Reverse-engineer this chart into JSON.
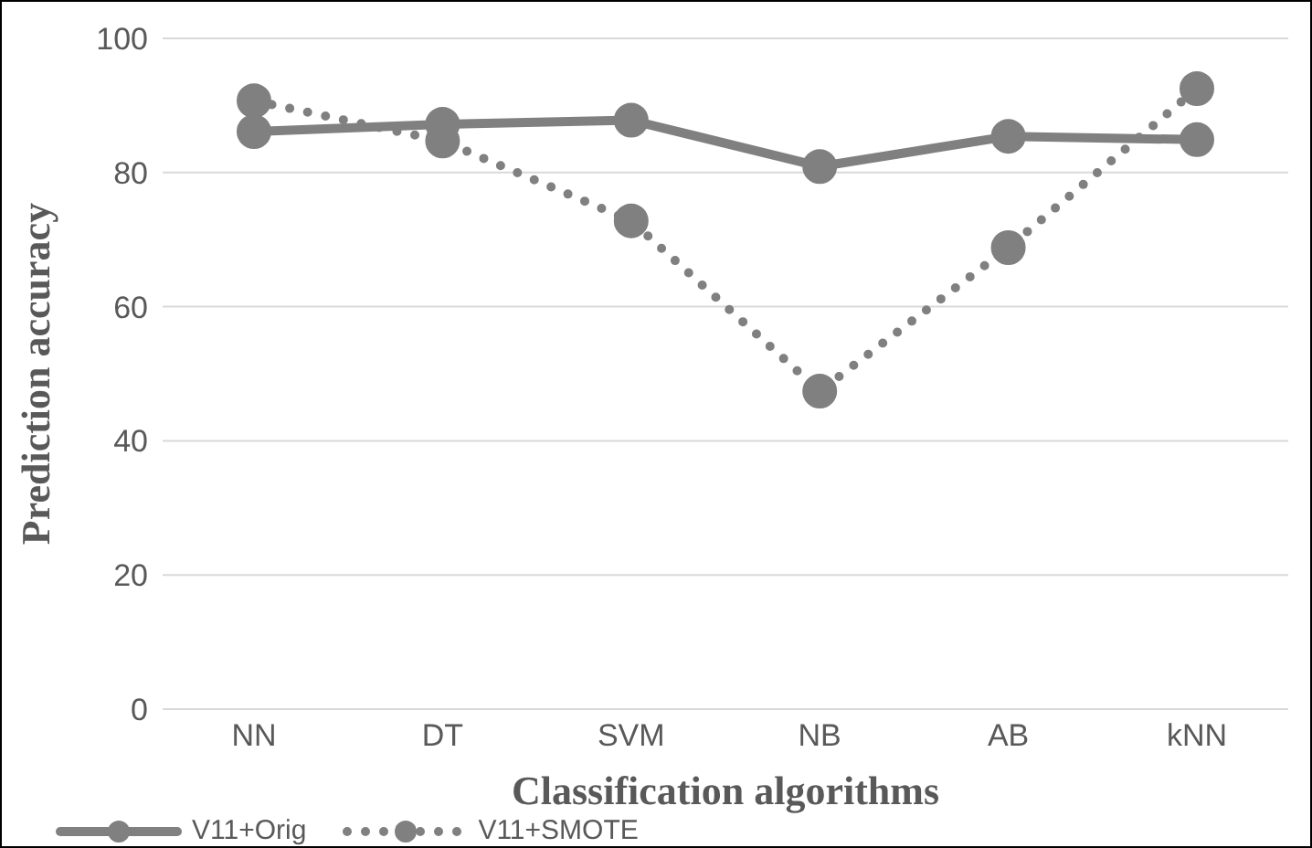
{
  "chart_data": {
    "type": "line",
    "xlabel": "Classification algorithms",
    "ylabel": "Prediction accuracy",
    "categories": [
      "NN",
      "DT",
      "SVM",
      "NB",
      "AB",
      "kNN"
    ],
    "series": [
      {
        "name": "V11+Orig",
        "color": "#808080",
        "values": [
          86.1,
          87.2,
          87.8,
          80.9,
          85.4,
          84.9
        ],
        "line_style": "solid"
      },
      {
        "name": "V11+SMOTE",
        "color": "#808080",
        "values": [
          90.7,
          84.7,
          72.8,
          47.4,
          68.8,
          92.5
        ],
        "line_style": "dotted"
      }
    ],
    "ylim": [
      0,
      100
    ],
    "yticks": [
      0,
      20,
      40,
      60,
      80,
      100
    ],
    "grid": "y",
    "legend": "bottom left",
    "marker": "circle"
  }
}
